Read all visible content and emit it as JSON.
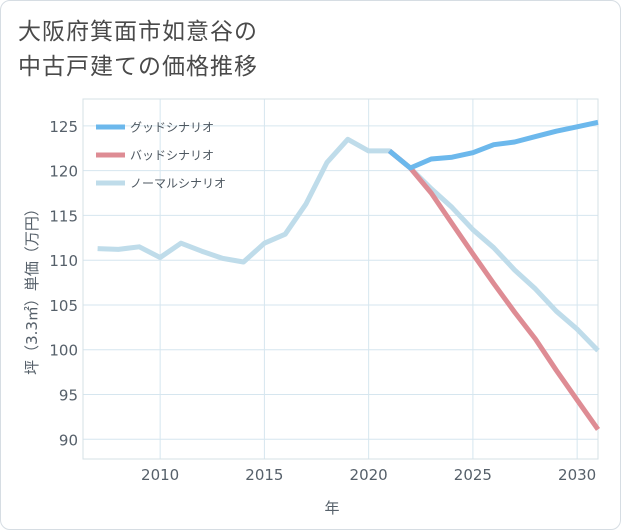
{
  "title": {
    "line1": "大阪府箕面市如意谷の",
    "line2": "中古戸建ての価格推移"
  },
  "colors": {
    "good": "#6cb8ec",
    "bad": "#de8c94",
    "normal": "#bfdcea",
    "grid": "#d6e6ef",
    "text": "#56606a"
  },
  "chart_data": {
    "type": "line",
    "title": "大阪府箕面市如意谷の中古戸建ての価格推移",
    "xlabel": "年",
    "ylabel": "坪（3.3㎡）単価（万円）",
    "xlim": [
      2006.3,
      2031
    ],
    "ylim": [
      87.8,
      128
    ],
    "xticks": [
      2010,
      2015,
      2020,
      2025,
      2030
    ],
    "yticks": [
      90,
      95,
      100,
      105,
      110,
      115,
      120,
      125
    ],
    "grid": true,
    "legend_position": "top-left",
    "series": [
      {
        "key": "good",
        "name": "グッドシナリオ",
        "x": [
          2021,
          2022,
          2023,
          2024,
          2025,
          2026,
          2027,
          2028,
          2029,
          2030,
          2031
        ],
        "y": [
          122.2,
          120.3,
          121.3,
          121.5,
          122.0,
          122.9,
          123.2,
          123.8,
          124.4,
          124.9,
          125.4
        ]
      },
      {
        "key": "bad",
        "name": "バッドシナリオ",
        "x": [
          2021,
          2022,
          2023,
          2024,
          2025,
          2026,
          2027,
          2028,
          2029,
          2030,
          2031
        ],
        "y": [
          122.2,
          120.3,
          117.5,
          114.1,
          110.7,
          107.4,
          104.2,
          101.2,
          97.7,
          94.4,
          91.1
        ]
      },
      {
        "key": "normal",
        "name": "ノーマルシナリオ",
        "x": [
          2007,
          2008,
          2009,
          2010,
          2011,
          2012,
          2013,
          2014,
          2015,
          2016,
          2017,
          2018,
          2019,
          2020,
          2021,
          2022,
          2023,
          2024,
          2025,
          2026,
          2027,
          2028,
          2029,
          2030,
          2031
        ],
        "y": [
          111.3,
          111.2,
          111.5,
          110.3,
          111.9,
          111.0,
          110.2,
          109.8,
          111.9,
          112.9,
          116.3,
          120.9,
          123.5,
          122.2,
          122.2,
          120.3,
          118.0,
          115.9,
          113.4,
          111.4,
          108.9,
          106.8,
          104.3,
          102.3,
          99.9
        ]
      }
    ]
  }
}
